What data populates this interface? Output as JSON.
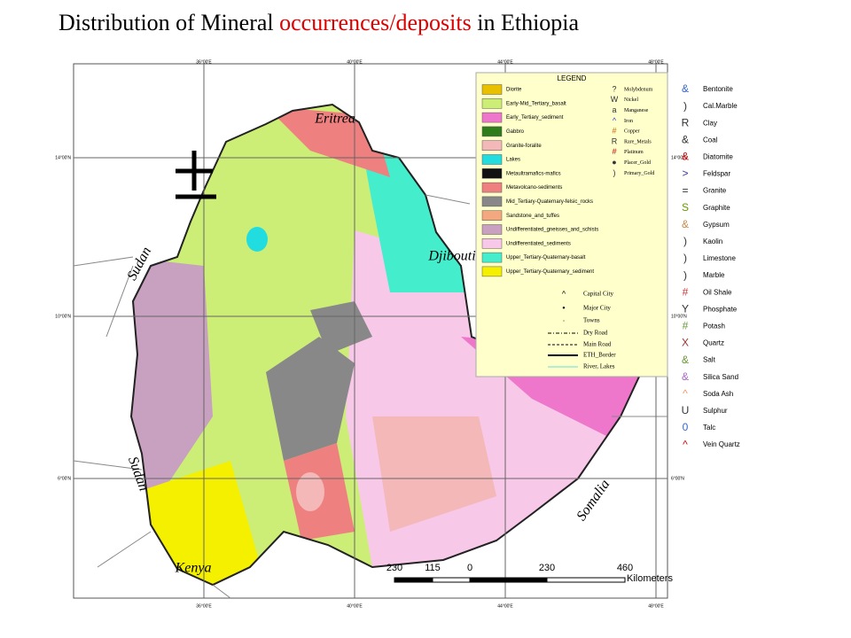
{
  "title": {
    "part1": "Distribution of Mineral",
    "part2": "occurrences/deposits",
    "part3": "in Ethiopia"
  },
  "graticule": {
    "lon_labels": [
      "36°00'E",
      "40°00'E",
      "44°00'E",
      "48°00'E"
    ],
    "lat_labels": [
      "14°00'N",
      "10°00'N",
      "6°00'N"
    ]
  },
  "countries": [
    "Eritrea",
    "Sudan",
    "Djibouti",
    "Sudan",
    "Somalia",
    "Kenya"
  ],
  "legend": {
    "title": "LEGEND",
    "geology": [
      {
        "name": "Diorite",
        "color": "#e8c000"
      },
      {
        "name": "Early-Mid_Tertiary_basalt",
        "color": "#ccee77"
      },
      {
        "name": "Early_Tertiary_sediment",
        "color": "#ee77cc"
      },
      {
        "name": "Gabbro",
        "color": "#2e7d1a"
      },
      {
        "name": "Granite-foralite",
        "color": "#f4b8b8"
      },
      {
        "name": "Lakes",
        "color": "#22dde0"
      },
      {
        "name": "Metaultramafics-mafics",
        "color": "#111111"
      },
      {
        "name": "Metavolcano-sediments",
        "color": "#ee8080"
      },
      {
        "name": "Mid_Tertiary-Quaternary-felsic_rocks",
        "color": "#888888"
      },
      {
        "name": "Sandstone_and_tuffes",
        "color": "#f4a880"
      },
      {
        "name": "Undifferentiated_gneisses_and_schists",
        "color": "#c8a0c0"
      },
      {
        "name": "Undifferentiated_sediments",
        "color": "#f8c8e8"
      },
      {
        "name": "Upper_Tertiary-Quaternary-basalt",
        "color": "#44eecc"
      },
      {
        "name": "Upper_Tertiary-Quaternary_sediment",
        "color": "#f4f000"
      }
    ],
    "metals": [
      {
        "symbol": "?",
        "name": "Molybdenum",
        "color": "#333333"
      },
      {
        "symbol": "W",
        "name": "Nickel",
        "color": "#333333"
      },
      {
        "symbol": "a",
        "name": "Manganese",
        "color": "#333333"
      },
      {
        "symbol": "^",
        "name": "Iron",
        "color": "#3344cc"
      },
      {
        "symbol": "#",
        "name": "Copper",
        "color": "#cc6600"
      },
      {
        "symbol": "R",
        "name": "Rare_Metals",
        "color": "#333333"
      },
      {
        "symbol": "#",
        "name": "Platinum",
        "color": "#cc0000"
      },
      {
        "symbol": "●",
        "name": "Placer_Gold",
        "color": "#333333"
      },
      {
        "symbol": ")",
        "name": "Primary_Gold",
        "color": "#333333"
      }
    ],
    "features": [
      {
        "symbol": "^",
        "name": "Capital City"
      },
      {
        "symbol": "•",
        "name": "Major City"
      },
      {
        "symbol": "·",
        "name": "Towns"
      },
      {
        "name": "Dry Road",
        "dash": "4 2 1 2",
        "width": 1
      },
      {
        "name": "Main Road",
        "dash": "3 2",
        "width": 1
      },
      {
        "name": "ETH_Border",
        "dash": "",
        "width": 2
      },
      {
        "name": "River, Lakes",
        "dash": "",
        "width": 1,
        "color": "#66dddd"
      }
    ]
  },
  "minerals": [
    {
      "symbol": "&",
      "name": "Bentonite",
      "color": "#3366cc"
    },
    {
      "symbol": ")",
      "name": "Cal.Marble",
      "color": "#333333"
    },
    {
      "symbol": "R",
      "name": "Clay",
      "color": "#333333"
    },
    {
      "symbol": "&",
      "name": "Coal",
      "color": "#333333"
    },
    {
      "symbol": "&",
      "name": "Diatomite",
      "color": "#cc0000"
    },
    {
      "symbol": ">",
      "name": "Feldspar",
      "color": "#333399"
    },
    {
      "symbol": "=",
      "name": "Granite",
      "color": "#333333"
    },
    {
      "symbol": "S",
      "name": "Graphite",
      "color": "#669900"
    },
    {
      "symbol": "&",
      "name": "Gypsum",
      "color": "#cc8844"
    },
    {
      "symbol": ")",
      "name": "Kaolin",
      "color": "#333333"
    },
    {
      "symbol": ")",
      "name": "Limestone",
      "color": "#333333"
    },
    {
      "symbol": ")",
      "name": "Marble",
      "color": "#333333"
    },
    {
      "symbol": "#",
      "name": "Oil Shale",
      "color": "#cc3333"
    },
    {
      "symbol": "Y",
      "name": "Phosphate",
      "color": "#333333"
    },
    {
      "symbol": "#",
      "name": "Potash",
      "color": "#669933"
    },
    {
      "symbol": "X",
      "name": "Quartz",
      "color": "#993333"
    },
    {
      "symbol": "&",
      "name": "Salt",
      "color": "#669933"
    },
    {
      "symbol": "&",
      "name": "Silica Sand",
      "color": "#aa66cc"
    },
    {
      "symbol": "^",
      "name": "Soda Ash",
      "color": "#ee9966"
    },
    {
      "symbol": "U",
      "name": "Sulphur",
      "color": "#333333"
    },
    {
      "symbol": "0",
      "name": "Talc",
      "color": "#3366cc"
    },
    {
      "symbol": "^",
      "name": "Vein Quartz",
      "color": "#cc0000"
    }
  ],
  "scale": {
    "labels": [
      "230",
      "115",
      "0",
      "230",
      "460"
    ],
    "unit": "Kilometers"
  }
}
